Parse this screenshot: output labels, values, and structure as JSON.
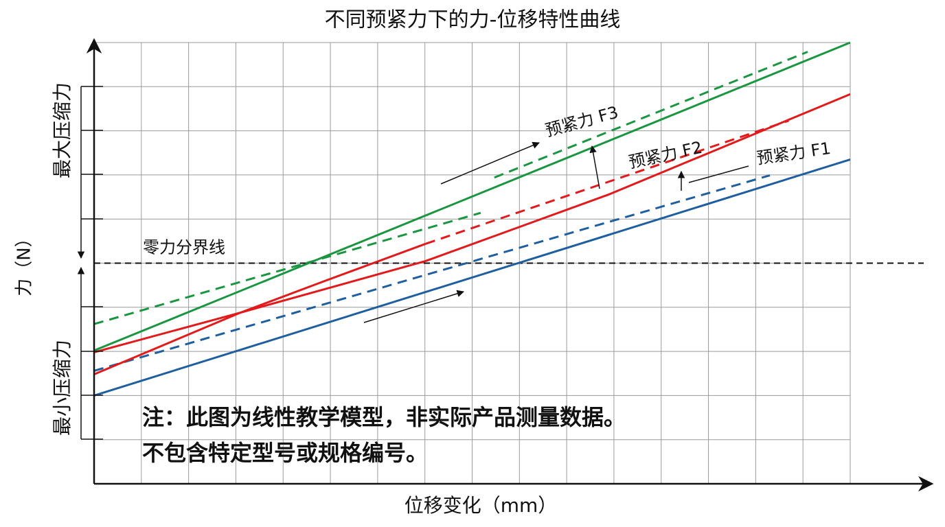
{
  "chart_data": {
    "type": "line",
    "title": "不同预紧力下的力-位移特性曲线",
    "x_label": "位移变化（mm）",
    "y_label": "力（N）",
    "xlim": [
      0,
      16
    ],
    "ylim": [
      -5,
      5
    ],
    "grid": true,
    "reference_line": {
      "value": 0,
      "label": "零力分界线"
    },
    "upper_band_label": "最大压缩力",
    "lower_band_label": "最小压缩力",
    "annotations": [
      "预紧力 F3",
      "预紧力 F2",
      "预紧力 F1"
    ],
    "note": [
      "注：此图为线性教学模型，非实际产品测量数据。",
      "不包含特定型号或规格编号。"
    ],
    "series": [
      {
        "color": "#1f5fa0",
        "style": "solid",
        "x": [
          0,
          16
        ],
        "values": [
          -3.0,
          2.35
        ]
      },
      {
        "color": "#1f5fa0",
        "style": "dashed",
        "x": [
          0,
          14.3
        ],
        "values": [
          -2.44,
          1.99
        ]
      },
      {
        "color": "#e31a1c",
        "style": "solid",
        "x": [
          0,
          3.1,
          7.02,
          10.9,
          16
        ],
        "values": [
          -2.02,
          -1.12,
          0.05,
          1.56,
          3.83
        ]
      },
      {
        "color": "#e31a1c",
        "style": "solid",
        "x": [
          0,
          3.1,
          4.84,
          7.02
        ],
        "values": [
          -2.52,
          -1.12,
          -0.42,
          0.44
        ]
      },
      {
        "color": "#e31a1c",
        "style": "dashed",
        "x": [
          7.02,
          14.7
        ],
        "values": [
          0.44,
          3.23
        ]
      },
      {
        "color": "#1a9641",
        "style": "solid",
        "x": [
          0,
          16
        ],
        "values": [
          -1.98,
          5.0
        ]
      },
      {
        "color": "#1a9641",
        "style": "dashed",
        "x": [
          0,
          8.18
        ],
        "values": [
          -1.38,
          1.14
        ]
      },
      {
        "color": "#1a9641",
        "style": "dashed",
        "x": [
          8.47,
          15.1
        ],
        "values": [
          1.94,
          4.79
        ]
      }
    ]
  }
}
